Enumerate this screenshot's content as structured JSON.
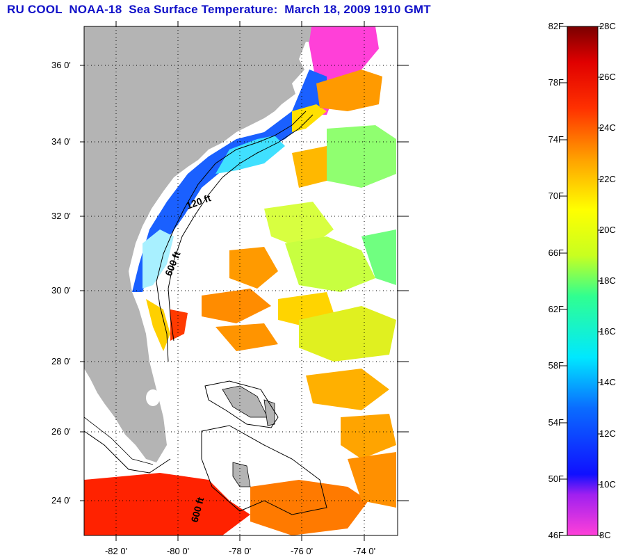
{
  "title": "RU COOL  NOAA-18  Sea Surface Temperature:  March 18, 2009 1910 GMT",
  "map": {
    "lat_labels": [
      "36 0'",
      "34 0'",
      "32 0'",
      "30 0'",
      "28 0'",
      "26 0'",
      "24 0'"
    ],
    "lon_labels": [
      "-82 0'",
      "-80 0'",
      "-78 0'",
      "-76 0'",
      "-74 0'"
    ],
    "isobath_labels": [
      "120 ft",
      "600 ft",
      "600 ft"
    ]
  },
  "colorbar": {
    "f_labels": [
      "82F",
      "78F",
      "74F",
      "70F",
      "66F",
      "62F",
      "58F",
      "54F",
      "50F",
      "46F"
    ],
    "c_labels": [
      "28C",
      "26C",
      "24C",
      "22C",
      "20C",
      "18C",
      "16C",
      "14C",
      "12C",
      "10C",
      "8C"
    ],
    "colors": {
      "hot": "#8b0000",
      "red": "#ff1a00",
      "orange": "#ff9a00",
      "yellow": "#f5f500",
      "green": "#6cff6c",
      "cyan": "#00e8ff",
      "blue": "#0a1cff",
      "purple": "#7a20e0",
      "magenta": "#ff40d8",
      "land": "#b4b4b4"
    }
  }
}
